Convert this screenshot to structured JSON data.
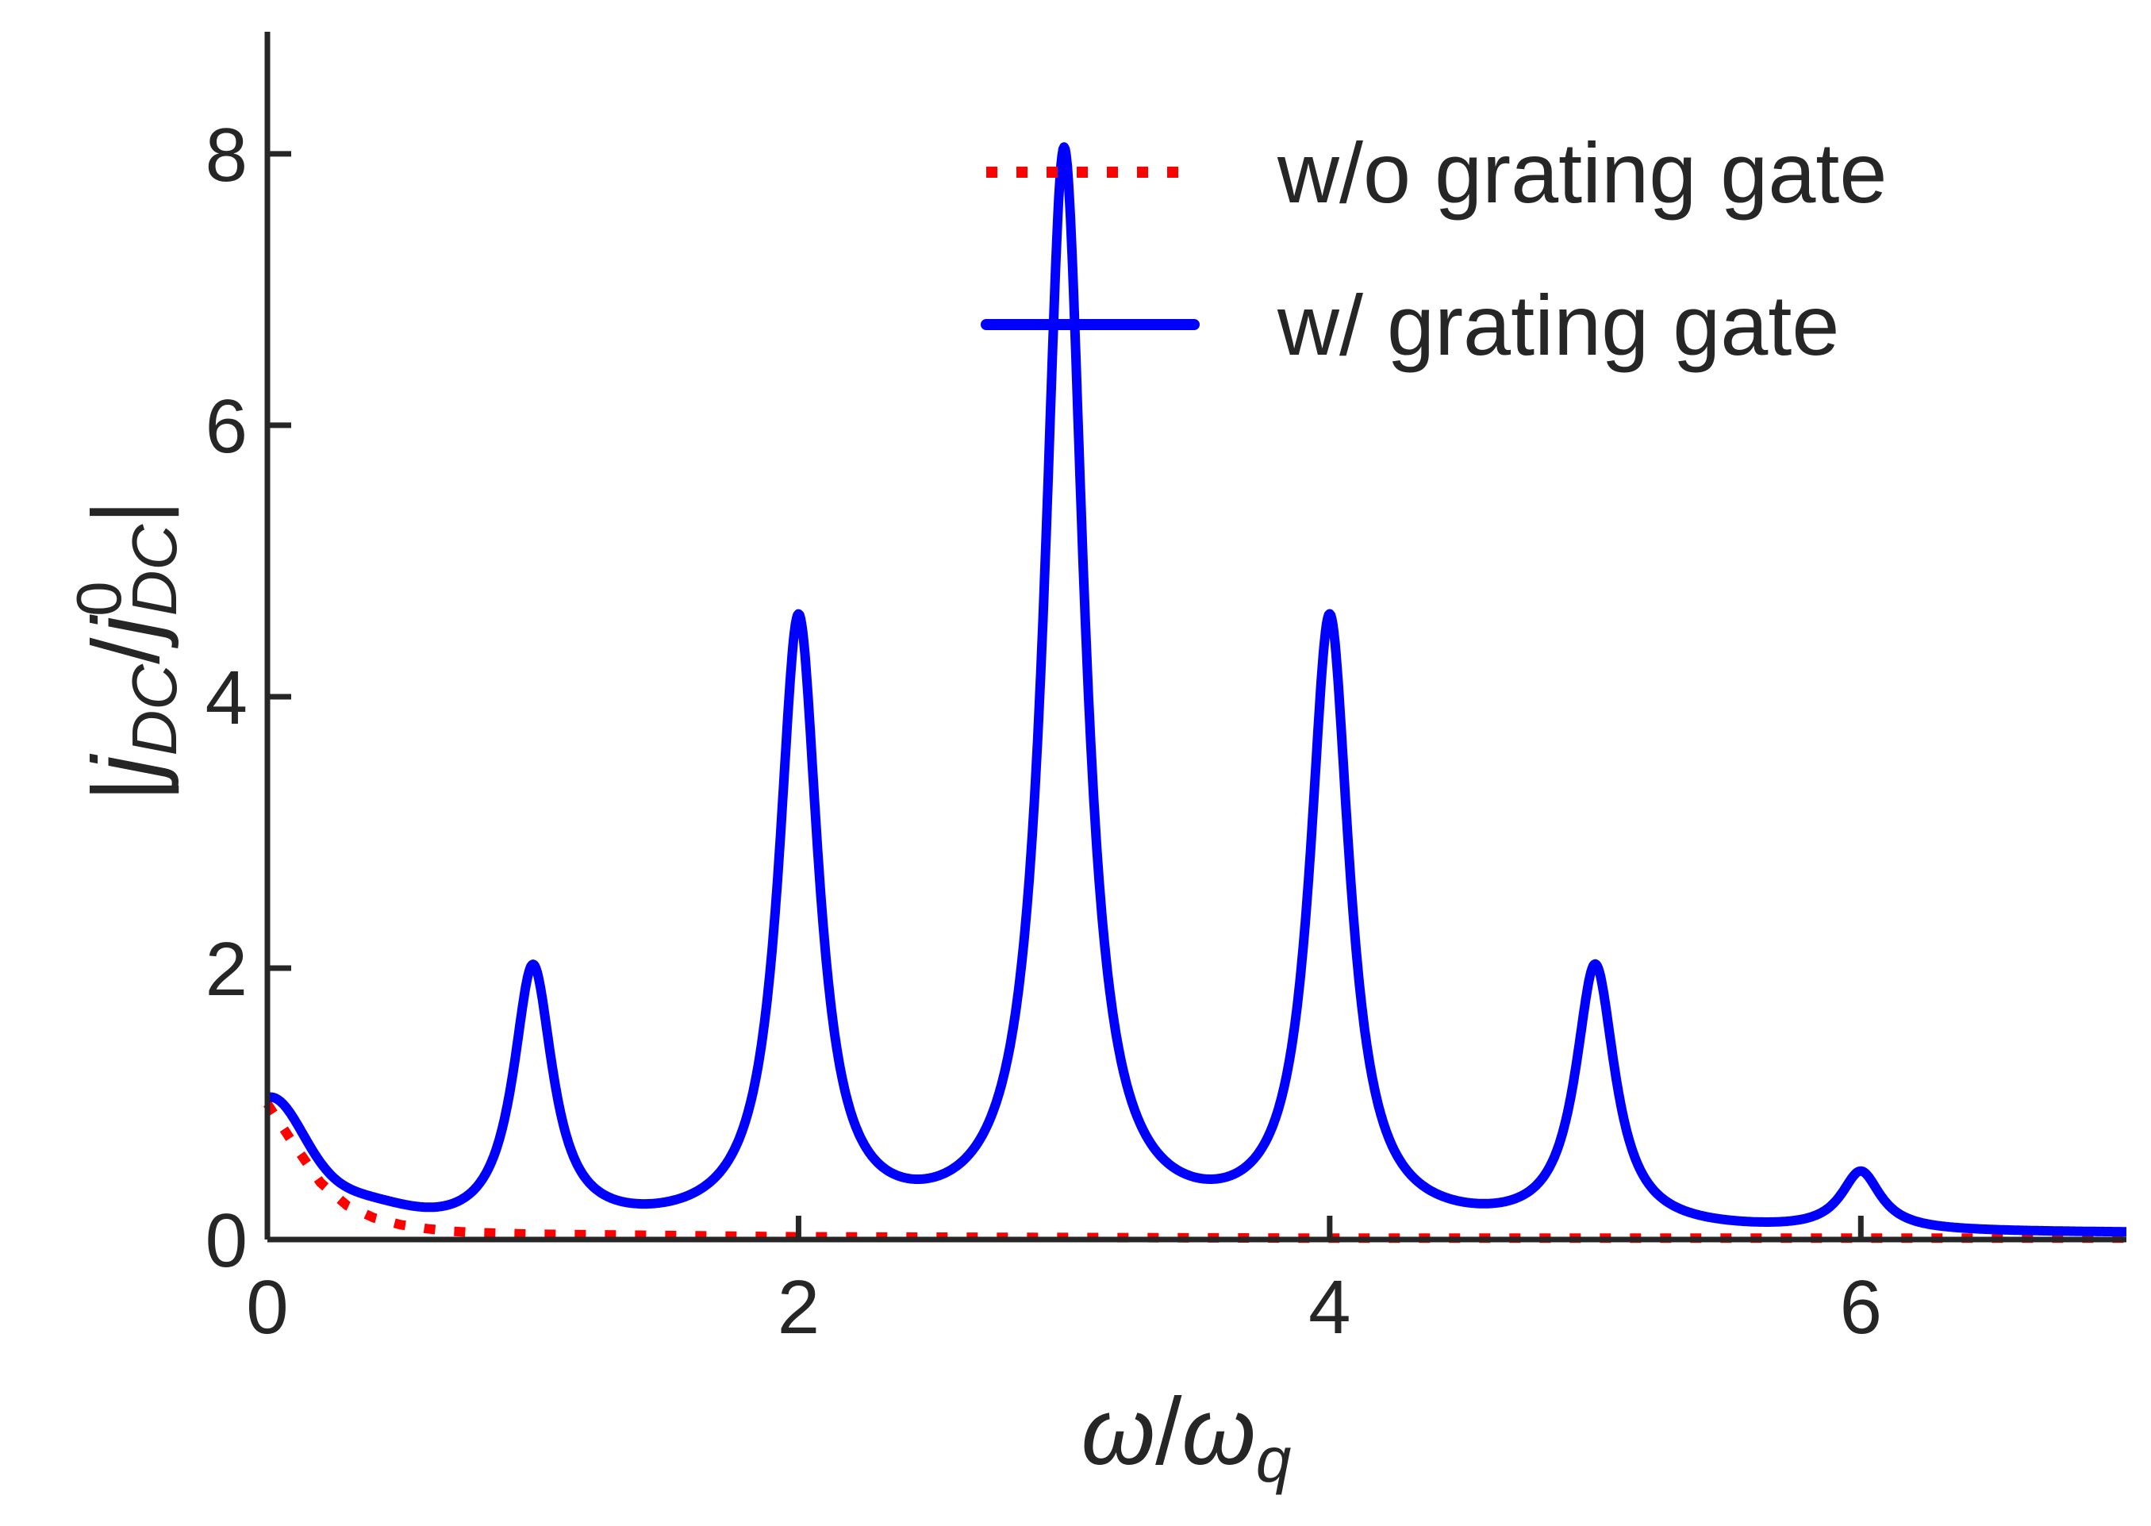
{
  "chart_data": {
    "type": "line",
    "xlabel": "ω/ω_q",
    "ylabel": "|j_DC/j⁰_DC|",
    "xlim": [
      0,
      7
    ],
    "ylim": [
      0,
      8.9
    ],
    "x_ticks": [
      "0",
      "2",
      "4",
      "6"
    ],
    "y_ticks": [
      "0",
      "2",
      "4",
      "6",
      "8"
    ],
    "grid": false,
    "legend_position": "top-right",
    "series": [
      {
        "name": "w/o grating gate",
        "style": "dotted",
        "color": "#ff0000",
        "x": [
          0,
          0.1,
          0.2,
          0.3,
          0.4,
          0.5,
          0.6,
          0.7,
          0.8,
          1.0,
          1.5,
          2.0,
          3.0,
          4.0,
          5.0,
          6.0,
          7.0
        ],
        "y": [
          1.0,
          0.7,
          0.42,
          0.25,
          0.16,
          0.11,
          0.08,
          0.06,
          0.05,
          0.04,
          0.03,
          0.02,
          0.015,
          0.01,
          0.01,
          0.01,
          0.01
        ]
      },
      {
        "name": "w/ grating gate",
        "style": "solid",
        "color": "#0000ff",
        "peaks": [
          {
            "x": 1,
            "height": 2.05
          },
          {
            "x": 2,
            "height": 4.6
          },
          {
            "x": 3,
            "height": 8.05
          },
          {
            "x": 4,
            "height": 4.6
          },
          {
            "x": 5,
            "height": 2.05
          },
          {
            "x": 6,
            "height": 0.55
          }
        ],
        "x": [
          0,
          0.2,
          0.5,
          0.75,
          1.0,
          1.25,
          1.5,
          1.75,
          2.0,
          2.25,
          2.5,
          2.75,
          3.0,
          3.25,
          3.5,
          3.75,
          4.0,
          4.25,
          4.5,
          4.75,
          5.0,
          5.25,
          5.5,
          5.75,
          6.0,
          6.25,
          6.5,
          7.0
        ],
        "y": [
          1.0,
          0.45,
          0.2,
          0.3,
          2.05,
          0.38,
          0.25,
          0.55,
          4.6,
          0.75,
          0.5,
          1.05,
          8.05,
          1.05,
          0.5,
          0.75,
          4.6,
          0.55,
          0.28,
          0.38,
          2.05,
          0.25,
          0.14,
          0.16,
          0.55,
          0.1,
          0.07,
          0.05
        ]
      }
    ]
  }
}
